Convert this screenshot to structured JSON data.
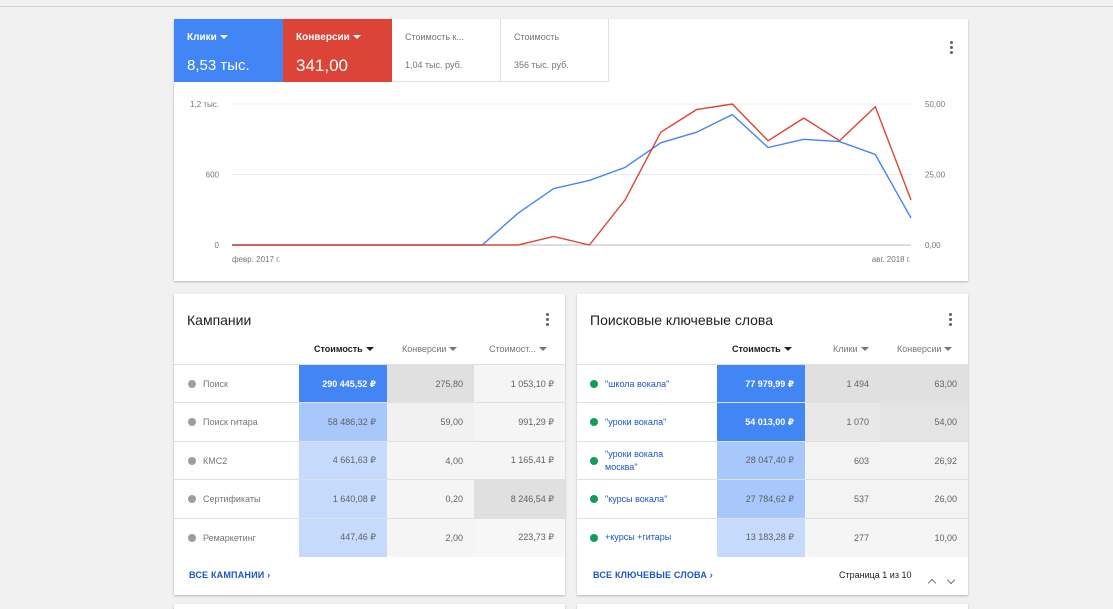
{
  "overview": {
    "metrics": [
      {
        "label": "Клики",
        "value": "8,53 тыс.",
        "active": true,
        "color": "#4285f4"
      },
      {
        "label": "Конверсии",
        "value": "341,00",
        "active": true,
        "color": "#db4437"
      },
      {
        "label": "Стоимость к...",
        "value": "1,04 тыс. руб.",
        "active": false
      },
      {
        "label": "Стоимость",
        "value": "356 тыс. руб.",
        "active": false
      }
    ],
    "menu_icon": "more-vert-icon"
  },
  "chart_data": {
    "type": "line",
    "x_labels": [
      "февр. 2017 г.",
      "авг. 2018 г."
    ],
    "y_left_ticks": [
      "1,2 тыс.",
      "600",
      "0"
    ],
    "y_right_ticks": [
      "50,00",
      "25,00",
      "0,00"
    ],
    "y_left_lim": [
      0,
      1200
    ],
    "y_right_lim": [
      0,
      50
    ],
    "grid": true,
    "series": [
      {
        "name": "Клики",
        "axis": "left",
        "color": "#4285f4",
        "values": [
          0,
          0,
          0,
          0,
          0,
          0,
          0,
          0,
          270,
          480,
          550,
          660,
          870,
          960,
          1110,
          830,
          900,
          880,
          770,
          230
        ]
      },
      {
        "name": "Конверсии",
        "axis": "right",
        "color": "#db4437",
        "values": [
          0,
          0,
          0,
          0,
          0,
          0,
          0,
          0,
          0,
          3,
          0,
          16,
          40,
          48,
          50,
          37,
          45,
          37,
          49,
          16
        ]
      }
    ]
  },
  "campaigns": {
    "title": "Кампании",
    "columns": [
      "Стоимость",
      "Конверсии",
      "Стоимост..."
    ],
    "rows": [
      {
        "name": "Поиск",
        "cost": "290 445,52 ₽",
        "conv": "275,80",
        "cpa": "1 053,10 ₽"
      },
      {
        "name": "Поиск гитара",
        "cost": "58 486,32 ₽",
        "conv": "59,00",
        "cpa": "991,29 ₽"
      },
      {
        "name": "КМС2",
        "cost": "4 661,63 ₽",
        "conv": "4,00",
        "cpa": "1 165,41 ₽"
      },
      {
        "name": "Сертификаты",
        "cost": "1 640,08 ₽",
        "conv": "0,20",
        "cpa": "8 246,54 ₽"
      },
      {
        "name": "Ремаркетинг",
        "cost": "447,46 ₽",
        "conv": "2,00",
        "cpa": "223,73 ₽"
      }
    ],
    "footer_link": "ВСЕ КАМПАНИИ"
  },
  "keywords": {
    "title": "Поисковые ключевые слова",
    "columns": [
      "Стоимость",
      "Клики",
      "Конверсии"
    ],
    "rows": [
      {
        "keyword": "\"школа вокала\"",
        "cost": "77 979,99 ₽",
        "clicks": "1 494",
        "conv": "63,00"
      },
      {
        "keyword": "\"уроки вокала\"",
        "cost": "54 013,00 ₽",
        "clicks": "1 070",
        "conv": "54,00"
      },
      {
        "keyword": "\"уроки вокала москва\"",
        "cost": "28 047,40 ₽",
        "clicks": "603",
        "conv": "26,92"
      },
      {
        "keyword": "\"курсы вокала\"",
        "cost": "27 784,62 ₽",
        "clicks": "537",
        "conv": "26,00"
      },
      {
        "keyword": "+курсы +гитары",
        "cost": "13 183,28 ₽",
        "clicks": "277",
        "conv": "10,00"
      }
    ],
    "footer_link": "ВСЕ КЛЮЧЕВЫЕ СЛОВА",
    "pagination": "Страница 1 из 10"
  },
  "colors": {
    "blue": "#4285f4",
    "red": "#db4437",
    "link": "#1a55c6",
    "status_green": "#0f9d58",
    "status_gray": "#9e9e9e"
  }
}
